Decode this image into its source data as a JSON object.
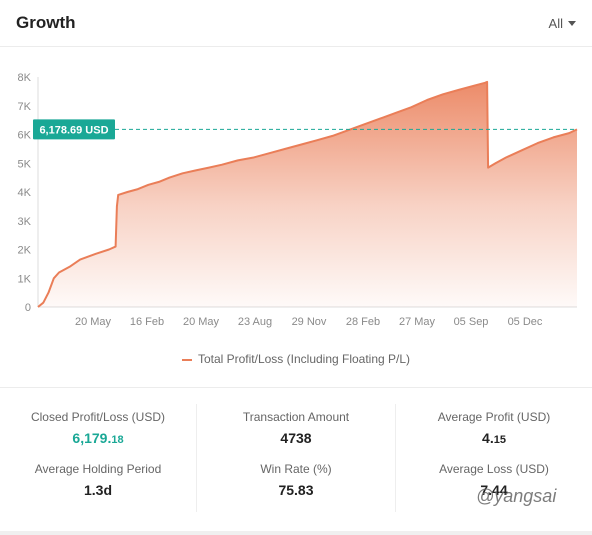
{
  "header": {
    "title": "Growth",
    "period": "All"
  },
  "chart_data": {
    "type": "area",
    "xlabel": "",
    "ylabel": "",
    "ylim": [
      0,
      8000
    ],
    "yticks": [
      "0",
      "1K",
      "2K",
      "3K",
      "4K",
      "5K",
      "6K",
      "7K",
      "8K"
    ],
    "xticks": [
      "20 May",
      "16 Feb",
      "20 May",
      "23 Aug",
      "29 Nov",
      "28 Feb",
      "27 May",
      "05 Sep",
      "05 Dec"
    ],
    "reference_line": {
      "value": 6178.69,
      "label": "6,178.69 USD"
    },
    "series": [
      {
        "name": "Total Profit/Loss (Including Floating P/L)",
        "color": "#ea7e58",
        "points": [
          [
            0,
            0
          ],
          [
            0.02,
            150
          ],
          [
            0.04,
            500
          ],
          [
            0.06,
            1000
          ],
          [
            0.08,
            1200
          ],
          [
            0.12,
            1400
          ],
          [
            0.16,
            1650
          ],
          [
            0.22,
            1850
          ],
          [
            0.27,
            2000
          ],
          [
            0.295,
            2100
          ],
          [
            0.3,
            3500
          ],
          [
            0.305,
            3900
          ],
          [
            0.34,
            4000
          ],
          [
            0.38,
            4100
          ],
          [
            0.42,
            4250
          ],
          [
            0.46,
            4350
          ],
          [
            0.5,
            4500
          ],
          [
            0.55,
            4650
          ],
          [
            0.6,
            4750
          ],
          [
            0.65,
            4850
          ],
          [
            0.7,
            4950
          ],
          [
            0.76,
            5100
          ],
          [
            0.82,
            5200
          ],
          [
            0.88,
            5350
          ],
          [
            0.94,
            5500
          ],
          [
            1.0,
            5650
          ],
          [
            1.06,
            5800
          ],
          [
            1.12,
            5950
          ],
          [
            1.18,
            6150
          ],
          [
            1.24,
            6350
          ],
          [
            1.3,
            6550
          ],
          [
            1.36,
            6750
          ],
          [
            1.42,
            6950
          ],
          [
            1.48,
            7200
          ],
          [
            1.54,
            7400
          ],
          [
            1.6,
            7550
          ],
          [
            1.66,
            7700
          ],
          [
            1.7,
            7800
          ],
          [
            1.708,
            7830
          ],
          [
            1.712,
            4850
          ],
          [
            1.74,
            5000
          ],
          [
            1.78,
            5200
          ],
          [
            1.84,
            5450
          ],
          [
            1.9,
            5700
          ],
          [
            1.96,
            5900
          ],
          [
            2.02,
            6050
          ],
          [
            2.05,
            6178.69
          ]
        ]
      }
    ]
  },
  "legend": {
    "label": "Total Profit/Loss (Including Floating P/L)"
  },
  "stats": {
    "closed_pl": {
      "label": "Closed Profit/Loss (USD)",
      "value_main": "6,179.",
      "value_dec": "18"
    },
    "transaction_amount": {
      "label": "Transaction Amount",
      "value": "4738"
    },
    "average_profit": {
      "label": "Average Profit (USD)",
      "value_main": "4.",
      "value_dec": "15"
    },
    "average_holding": {
      "label": "Average Holding Period",
      "value": "1.3d"
    },
    "win_rate": {
      "label": "Win Rate (%)",
      "value": "75.83"
    },
    "average_loss": {
      "label": "Average Loss (USD)",
      "value": "7.44"
    }
  },
  "watermark": "@yangsai"
}
